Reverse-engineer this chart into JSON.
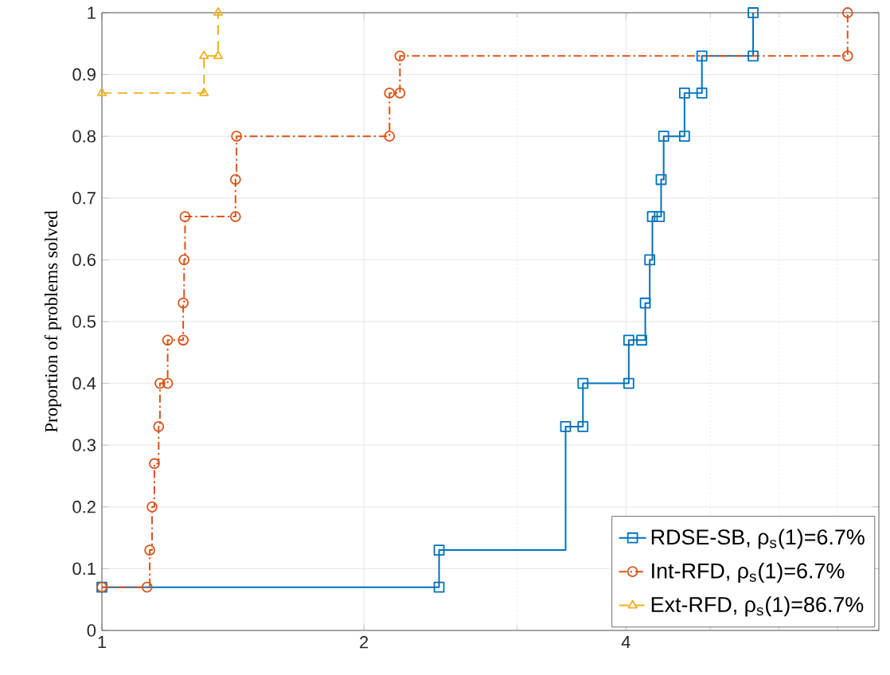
{
  "chart_data": {
    "type": "step",
    "ylabel": "Proportion of problems solved",
    "log": "x",
    "xlim": [
      1,
      7.81
    ],
    "xticks": [
      1,
      2,
      {
        "value": 3,
        "label": null
      },
      4,
      {
        "value": 5,
        "label": null
      },
      {
        "value": 6,
        "label": null
      },
      {
        "value": 7,
        "label": null
      }
    ],
    "ylim": [
      0,
      1
    ],
    "yticks": [
      0,
      0.1,
      0.2,
      0.3,
      0.4,
      0.5,
      0.6,
      0.7,
      0.8,
      0.9,
      1
    ],
    "grid": true,
    "legend": "bottom right",
    "series": [
      {
        "name": "RDSE-SB, ρ$_{s}$(1)=6.7%",
        "color": "#0072bd",
        "marker": "square",
        "line_style": "solid",
        "x": [
          1,
          2.44,
          2.44,
          3.41,
          3.57,
          3.57,
          4.03,
          4.03,
          4.17,
          4.21,
          4.26,
          4.29,
          4.37,
          4.39,
          4.42,
          4.67,
          4.67,
          4.89,
          4.89,
          5.6,
          5.6
        ],
        "values": [
          0.07,
          0.07,
          0.13,
          0.33,
          0.33,
          0.4,
          0.4,
          0.47,
          0.47,
          0.53,
          0.6,
          0.67,
          0.67,
          0.73,
          0.8,
          0.8,
          0.87,
          0.87,
          0.93,
          0.93,
          1
        ]
      },
      {
        "name": "Int-RFD, ρ$_{s}$(1)=6.7%",
        "color": "#d95319",
        "marker": "circle",
        "line_style": "dashdot",
        "x": [
          1,
          1.127,
          1.135,
          1.142,
          1.149,
          1.162,
          1.166,
          1.19,
          1.19,
          1.24,
          1.24,
          1.243,
          1.246,
          1.424,
          1.424,
          1.428,
          2.14,
          2.14,
          2.2,
          2.2,
          7.19,
          7.19
        ],
        "values": [
          0.07,
          0.07,
          0.13,
          0.2,
          0.27,
          0.33,
          0.4,
          0.4,
          0.47,
          0.47,
          0.53,
          0.6,
          0.67,
          0.67,
          0.73,
          0.8,
          0.8,
          0.87,
          0.87,
          0.93,
          0.93,
          1
        ]
      },
      {
        "name": "Ext-RFD, ρ$_{s}$(1)=86.7%",
        "color": "#edb120",
        "marker": "triangle",
        "line_style": "dashed",
        "x": [
          1,
          1.31,
          1.31,
          1.36,
          1.36
        ],
        "values": [
          0.87,
          0.87,
          0.93,
          0.93,
          1
        ]
      }
    ]
  }
}
